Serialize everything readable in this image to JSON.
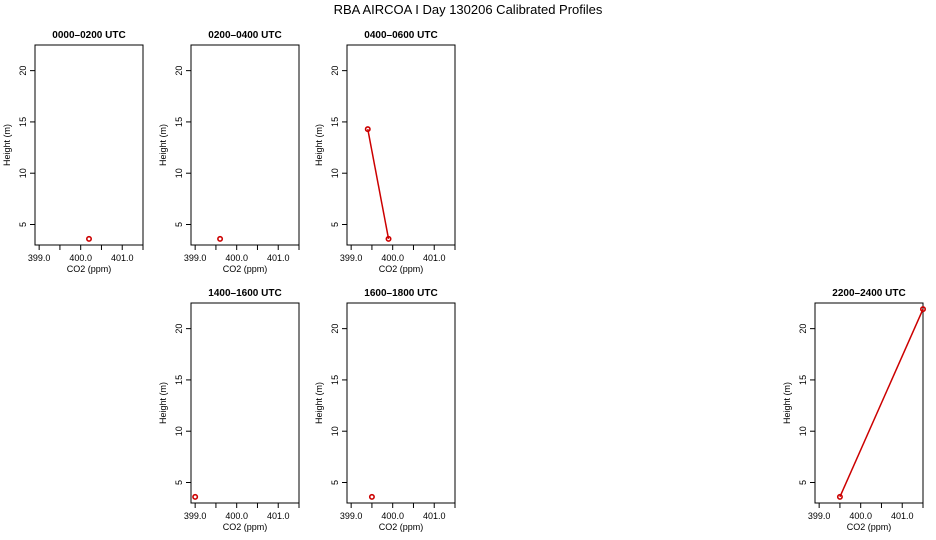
{
  "figure": {
    "title": "RBA AIRCOA I  Day 130206  Calibrated Profiles"
  },
  "chart_data": [
    {
      "type": "line",
      "title": "0000–0200 UTC",
      "xlabel": "CO2 (ppm)",
      "ylabel": "Height (m)",
      "xlim": [
        398.9,
        401.5
      ],
      "ylim": [
        3,
        22.5
      ],
      "xticks": [
        399.0,
        399.5,
        400.0,
        400.5,
        401.0,
        401.5
      ],
      "xtick_labels": [
        "399.0",
        "",
        "400.0",
        "",
        "401.0",
        ""
      ],
      "yticks": [
        5,
        10,
        15,
        20
      ],
      "ytick_labels": [
        "5",
        "10",
        "15",
        "20"
      ],
      "series": [
        {
          "x": [
            400.2
          ],
          "y": [
            3.6
          ],
          "color": "#cc0000"
        }
      ]
    },
    {
      "type": "line",
      "title": "0200–0400 UTC",
      "xlabel": "CO2 (ppm)",
      "ylabel": "Height (m)",
      "xlim": [
        398.9,
        401.5
      ],
      "ylim": [
        3,
        22.5
      ],
      "xticks": [
        399.0,
        399.5,
        400.0,
        400.5,
        401.0,
        401.5
      ],
      "xtick_labels": [
        "399.0",
        "",
        "400.0",
        "",
        "401.0",
        ""
      ],
      "yticks": [
        5,
        10,
        15,
        20
      ],
      "ytick_labels": [
        "5",
        "10",
        "15",
        "20"
      ],
      "series": [
        {
          "x": [
            399.6
          ],
          "y": [
            3.6
          ],
          "color": "#cc0000"
        }
      ]
    },
    {
      "type": "line",
      "title": "0400–0600 UTC",
      "xlabel": "CO2 (ppm)",
      "ylabel": "Height (m)",
      "xlim": [
        398.9,
        401.5
      ],
      "ylim": [
        3,
        22.5
      ],
      "xticks": [
        399.0,
        399.5,
        400.0,
        400.5,
        401.0,
        401.5
      ],
      "xtick_labels": [
        "399.0",
        "",
        "400.0",
        "",
        "401.0",
        ""
      ],
      "yticks": [
        5,
        10,
        15,
        20
      ],
      "ytick_labels": [
        "5",
        "10",
        "15",
        "20"
      ],
      "series": [
        {
          "x": [
            399.4,
            399.9
          ],
          "y": [
            14.3,
            3.6
          ],
          "color": "#cc0000"
        }
      ]
    },
    {
      "type": "line",
      "title": "1400–1600 UTC",
      "xlabel": "CO2 (ppm)",
      "ylabel": "Height (m)",
      "xlim": [
        398.9,
        401.5
      ],
      "ylim": [
        3,
        22.5
      ],
      "xticks": [
        399.0,
        399.5,
        400.0,
        400.5,
        401.0,
        401.5
      ],
      "xtick_labels": [
        "399.0",
        "",
        "400.0",
        "",
        "401.0",
        ""
      ],
      "yticks": [
        5,
        10,
        15,
        20
      ],
      "ytick_labels": [
        "5",
        "10",
        "15",
        "20"
      ],
      "series": [
        {
          "x": [
            399.0
          ],
          "y": [
            3.6
          ],
          "color": "#cc0000"
        }
      ]
    },
    {
      "type": "line",
      "title": "1600–1800 UTC",
      "xlabel": "CO2 (ppm)",
      "ylabel": "Height (m)",
      "xlim": [
        398.9,
        401.5
      ],
      "ylim": [
        3,
        22.5
      ],
      "xticks": [
        399.0,
        399.5,
        400.0,
        400.5,
        401.0,
        401.5
      ],
      "xtick_labels": [
        "399.0",
        "",
        "400.0",
        "",
        "401.0",
        ""
      ],
      "yticks": [
        5,
        10,
        15,
        20
      ],
      "ytick_labels": [
        "5",
        "10",
        "15",
        "20"
      ],
      "series": [
        {
          "x": [
            399.5
          ],
          "y": [
            3.6
          ],
          "color": "#cc0000"
        }
      ]
    },
    {
      "type": "line",
      "title": "2200–2400 UTC",
      "xlabel": "CO2 (ppm)",
      "ylabel": "Height (m)",
      "xlim": [
        398.9,
        401.5
      ],
      "ylim": [
        3,
        22.5
      ],
      "xticks": [
        399.0,
        399.5,
        400.0,
        400.5,
        401.0,
        401.5
      ],
      "xtick_labels": [
        "399.0",
        "",
        "400.0",
        "",
        "401.0",
        ""
      ],
      "yticks": [
        5,
        10,
        15,
        20
      ],
      "ytick_labels": [
        "5",
        "10",
        "15",
        "20"
      ],
      "series": [
        {
          "x": [
            399.5,
            401.5
          ],
          "y": [
            3.6,
            21.9
          ],
          "color": "#cc0000"
        }
      ]
    }
  ]
}
